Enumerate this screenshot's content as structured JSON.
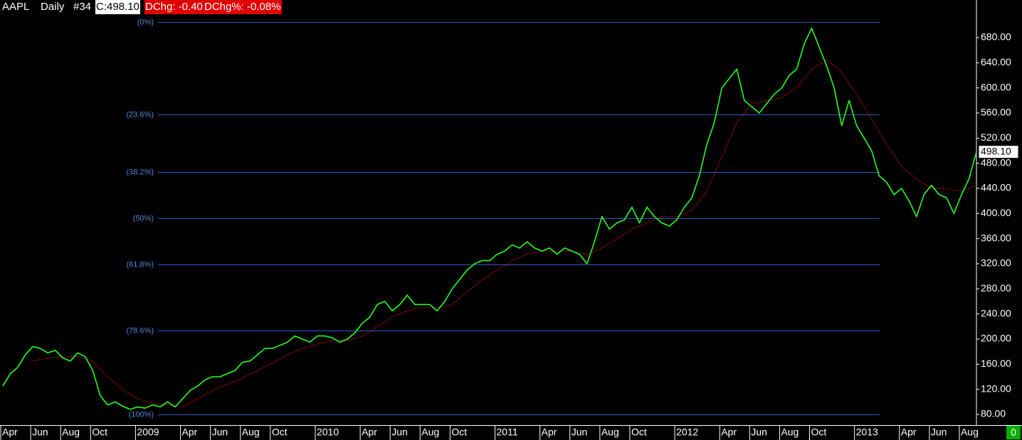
{
  "header": {
    "symbol": "AAPL",
    "interval": "Daily",
    "number": "#34",
    "close": "C:498.10",
    "change": "DChg: -0.40",
    "change_pct": "DChg%: -0.08%"
  },
  "corner": "0",
  "chart_data": {
    "type": "line",
    "xlim": [
      0,
      130
    ],
    "ylim": [
      63,
      740
    ],
    "xticks": [
      {
        "value": 0,
        "label": "Apr"
      },
      {
        "value": 4,
        "label": "Jun"
      },
      {
        "value": 8,
        "label": "Aug"
      },
      {
        "value": 12,
        "label": "Oct"
      },
      {
        "value": 18,
        "label": "2009"
      },
      {
        "value": 24,
        "label": "Apr"
      },
      {
        "value": 28,
        "label": "Jun"
      },
      {
        "value": 32,
        "label": "Aug"
      },
      {
        "value": 36,
        "label": "Oct"
      },
      {
        "value": 42,
        "label": "2010"
      },
      {
        "value": 48,
        "label": "Apr"
      },
      {
        "value": 52,
        "label": "Jun"
      },
      {
        "value": 56,
        "label": "Aug"
      },
      {
        "value": 60,
        "label": "Oct"
      },
      {
        "value": 66,
        "label": "2011"
      },
      {
        "value": 72,
        "label": "Apr"
      },
      {
        "value": 76,
        "label": "Jun"
      },
      {
        "value": 80,
        "label": "Aug"
      },
      {
        "value": 84,
        "label": "Oct"
      },
      {
        "value": 90,
        "label": "2012"
      },
      {
        "value": 96,
        "label": "Apr"
      },
      {
        "value": 100,
        "label": "Jun"
      },
      {
        "value": 104,
        "label": "Aug"
      },
      {
        "value": 108,
        "label": "Oct"
      },
      {
        "value": 114,
        "label": "2013"
      },
      {
        "value": 120,
        "label": "Apr"
      },
      {
        "value": 124,
        "label": "Jun"
      },
      {
        "value": 128,
        "label": "Aug"
      }
    ],
    "yticks": [
      {
        "value": 80,
        "label": "80.00"
      },
      {
        "value": 120,
        "label": "120.00"
      },
      {
        "value": 160,
        "label": "160.00"
      },
      {
        "value": 200,
        "label": "200.00"
      },
      {
        "value": 240,
        "label": "240.00"
      },
      {
        "value": 280,
        "label": "280.00"
      },
      {
        "value": 320,
        "label": "320.00"
      },
      {
        "value": 360,
        "label": "360.00"
      },
      {
        "value": 400,
        "label": "400.00"
      },
      {
        "value": 440,
        "label": "440.00"
      },
      {
        "value": 480,
        "label": "480.00"
      },
      {
        "value": 520,
        "label": "520.00"
      },
      {
        "value": 560,
        "label": "560.00"
      },
      {
        "value": 600,
        "label": "600.00"
      },
      {
        "value": 640,
        "label": "640.00"
      },
      {
        "value": 680,
        "label": "680.00"
      }
    ],
    "fib_levels": [
      {
        "value": 705,
        "label": "(0%)"
      },
      {
        "value": 557.5,
        "label": "(23.6%)"
      },
      {
        "value": 466.25,
        "label": "(38.2%)"
      },
      {
        "value": 392.5,
        "label": "(50%)"
      },
      {
        "value": 318.75,
        "label": "(61.8%)"
      },
      {
        "value": 213.75,
        "label": "(78.6%)"
      },
      {
        "value": 80,
        "label": "(100%)"
      }
    ],
    "fib_color": "#2a5cc0",
    "fib_label_color": "#4f86d8",
    "last_label": "498.10",
    "series": [
      {
        "color": "#22ff22",
        "style": "solid",
        "values": [
          125,
          145,
          155,
          175,
          188,
          185,
          178,
          182,
          170,
          165,
          178,
          172,
          150,
          110,
          95,
          100,
          93,
          88,
          92,
          90,
          95,
          92,
          100,
          92,
          105,
          118,
          125,
          135,
          140,
          140,
          145,
          150,
          163,
          165,
          175,
          185,
          185,
          190,
          195,
          205,
          200,
          195,
          205,
          205,
          202,
          195,
          200,
          210,
          225,
          235,
          255,
          260,
          245,
          255,
          270,
          255,
          255,
          255,
          245,
          260,
          280,
          295,
          310,
          320,
          325,
          325,
          335,
          340,
          350,
          345,
          355,
          345,
          340,
          345,
          335,
          345,
          340,
          335,
          320,
          355,
          395,
          375,
          385,
          390,
          410,
          385,
          410,
          395,
          385,
          380,
          390,
          410,
          425,
          460,
          510,
          545,
          600,
          615,
          630,
          580,
          570,
          560,
          575,
          590,
          600,
          620,
          630,
          670,
          695,
          665,
          635,
          600,
          540,
          580,
          540,
          520,
          500,
          460,
          450,
          430,
          440,
          420,
          395,
          430,
          445,
          430,
          425,
          400,
          430,
          455,
          498.1
        ]
      },
      {
        "color": "#cc1111",
        "style": "dotted",
        "values": [
          null,
          null,
          null,
          null,
          165,
          167,
          170,
          171,
          172,
          172,
          172,
          169,
          165,
          152,
          140,
          130,
          120,
          112,
          105,
          101,
          98,
          96,
          95,
          93,
          92,
          98,
          105,
          111,
          118,
          123,
          128,
          133,
          138,
          144,
          150,
          156,
          162,
          168,
          175,
          180,
          185,
          188,
          192,
          195,
          198,
          198,
          198,
          201,
          205,
          212,
          220,
          227,
          235,
          240,
          245,
          248,
          250,
          250,
          250,
          252,
          255,
          265,
          275,
          285,
          295,
          302,
          310,
          317,
          325,
          330,
          335,
          338,
          340,
          340,
          340,
          340,
          340,
          337,
          335,
          340,
          345,
          352,
          360,
          367,
          375,
          380,
          385,
          390,
          395,
          395,
          395,
          400,
          405,
          420,
          435,
          462,
          490,
          517,
          545,
          560,
          575,
          577,
          580,
          582,
          585,
          592,
          600,
          615,
          630,
          637,
          645,
          635,
          625,
          607,
          590,
          570,
          550,
          530,
          510,
          492,
          475,
          465,
          455,
          447,
          440,
          440,
          440,
          437,
          435,
          440,
          445
        ]
      }
    ]
  }
}
